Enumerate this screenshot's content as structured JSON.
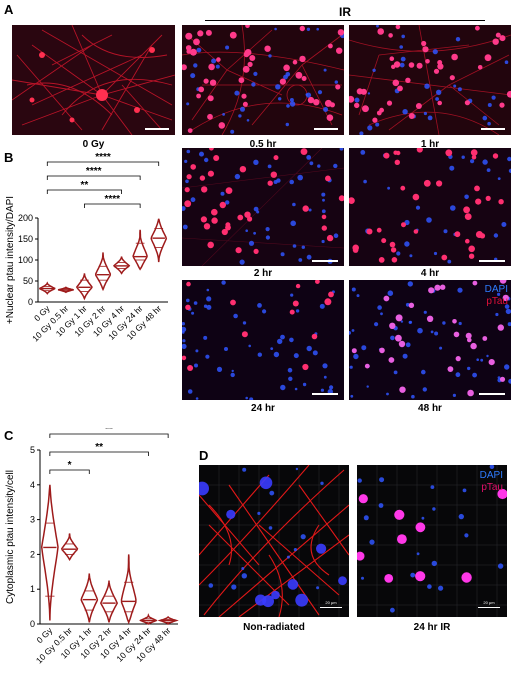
{
  "panels": {
    "A": {
      "letter": "A",
      "ir_label": "IR",
      "images": [
        {
          "caption": "0 Gy"
        },
        {
          "caption": "0.5 hr"
        },
        {
          "caption": "1 hr"
        }
      ]
    },
    "B": {
      "letter": "B",
      "images": [
        {
          "caption": "2 hr"
        },
        {
          "caption": "4 hr"
        },
        {
          "caption": "24 hr"
        },
        {
          "caption": "48 hr"
        }
      ],
      "legend": {
        "dapi": "DAPI",
        "ptau": "pTau"
      }
    },
    "C": {
      "letter": "C"
    },
    "D": {
      "letter": "D",
      "images": [
        {
          "caption": "Non-radiated",
          "scale_text": "20 μm"
        },
        {
          "caption": "24 hr IR",
          "scale_text": "20 μm"
        }
      ],
      "legend": {
        "dapi": "DAPI",
        "ptau": "pTau"
      }
    }
  },
  "colors": {
    "violin": "#9e1b1b",
    "dapi": "#2f7cff",
    "ptau": "#e0103a",
    "ptau_d": "#e0106a"
  },
  "chart_data": [
    {
      "type": "violin",
      "panel": "B",
      "ylabel": "+Nuclear ptau intensity/DAPI",
      "ylim": [
        0,
        200
      ],
      "yticks": [
        0,
        50,
        100,
        150,
        200
      ],
      "categories": [
        "0 Gy",
        "10 Gy 0.5 hr",
        "10 Gy 1 hr",
        "10 Gy 2 hr",
        "10 Gy 4 hr",
        "10 Gy 24 hr",
        "10 Gy 48 hr"
      ],
      "violins": [
        {
          "min": 20,
          "max": 45,
          "q1": 27,
          "median": 32,
          "q3": 37
        },
        {
          "min": 23,
          "max": 35,
          "q1": 26,
          "median": 29,
          "q3": 32
        },
        {
          "min": 8,
          "max": 68,
          "q1": 25,
          "median": 35,
          "q3": 52
        },
        {
          "min": 30,
          "max": 118,
          "q1": 52,
          "median": 65,
          "q3": 85
        },
        {
          "min": 68,
          "max": 108,
          "q1": 80,
          "median": 86,
          "q3": 94
        },
        {
          "min": 78,
          "max": 172,
          "q1": 100,
          "median": 108,
          "q3": 140
        },
        {
          "min": 95,
          "max": 198,
          "q1": 130,
          "median": 152,
          "q3": 175
        }
      ],
      "significance": [
        {
          "from": 0,
          "to": 6,
          "label": "****"
        },
        {
          "from": 0,
          "to": 5,
          "label": "****"
        },
        {
          "from": 0,
          "to": 4,
          "label": "**"
        },
        {
          "from": 2,
          "to": 5,
          "label": "****"
        }
      ]
    },
    {
      "type": "violin",
      "panel": "C",
      "ylabel": "Cytoplasmic ptau intensity/cell",
      "ylim": [
        0,
        5
      ],
      "yticks": [
        0,
        1,
        2,
        3,
        4,
        5
      ],
      "categories": [
        "0 Gy",
        "10 Gy 0.5 hr",
        "10 Gy 1 hr",
        "10 Gy 2 hr",
        "10 Gy 4 hr",
        "10 Gy 24 hr",
        "10 Gy 48 hr"
      ],
      "violins": [
        {
          "min": 0.1,
          "max": 4.0,
          "q1": 0.8,
          "median": 2.2,
          "q3": 2.9
        },
        {
          "min": 1.85,
          "max": 2.6,
          "q1": 2.0,
          "median": 2.15,
          "q3": 2.3
        },
        {
          "min": 0.05,
          "max": 1.45,
          "q1": 0.4,
          "median": 0.7,
          "q3": 0.95
        },
        {
          "min": 0.05,
          "max": 1.25,
          "q1": 0.35,
          "median": 0.6,
          "q3": 0.8
        },
        {
          "min": 0.05,
          "max": 2.0,
          "q1": 0.35,
          "median": 0.65,
          "q3": 1.2
        },
        {
          "min": 0.0,
          "max": 0.25,
          "q1": 0.05,
          "median": 0.1,
          "q3": 0.15
        },
        {
          "min": 0.0,
          "max": 0.2,
          "q1": 0.05,
          "median": 0.1,
          "q3": 0.13
        }
      ],
      "significance": [
        {
          "from": 0,
          "to": 6,
          "label": "**"
        },
        {
          "from": 0,
          "to": 5,
          "label": "**"
        },
        {
          "from": 0,
          "to": 2,
          "label": "*"
        }
      ]
    }
  ]
}
